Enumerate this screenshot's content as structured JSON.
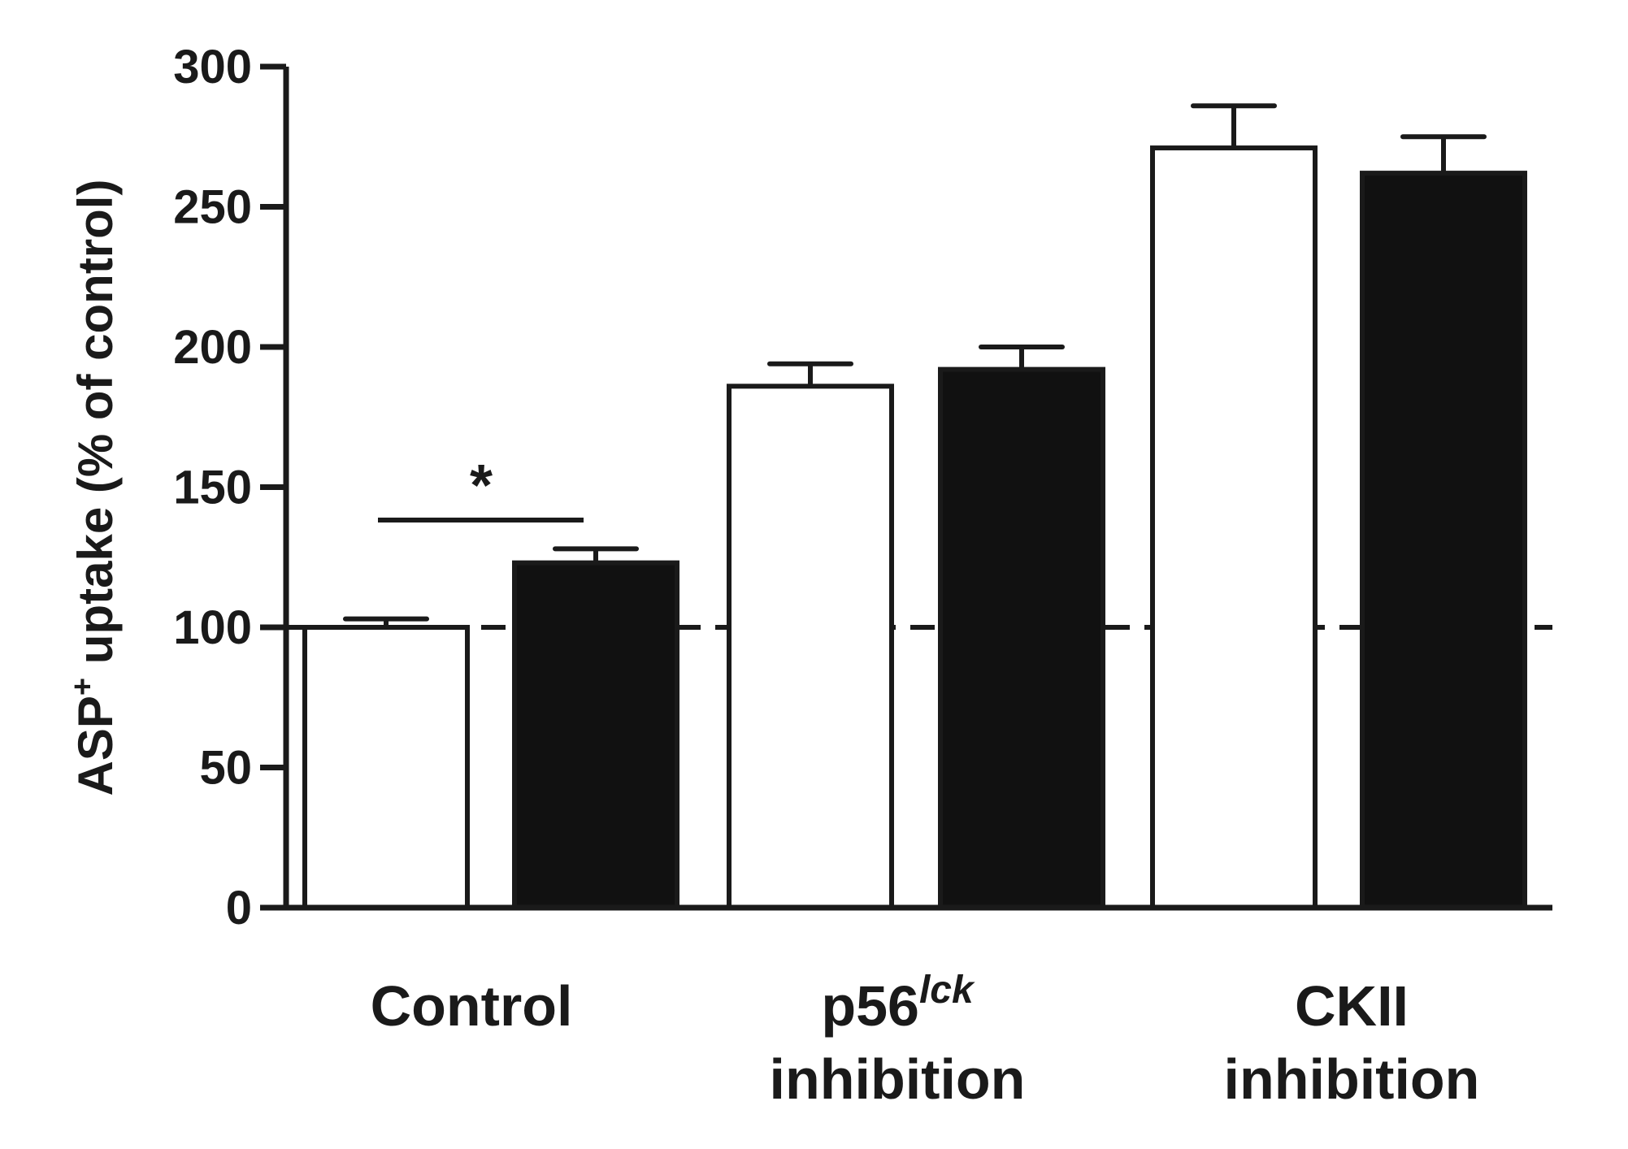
{
  "chart_data": {
    "type": "bar",
    "ylabel": "ASP+ uptake (% of control)",
    "ylabel_parts": {
      "main": "ASP",
      "sup": "+",
      "rest": " uptake (% of control)"
    },
    "ylim": [
      0,
      300
    ],
    "yticks": [
      0,
      50,
      100,
      150,
      200,
      250,
      300
    ],
    "ytick_labels": [
      "0",
      "50",
      "100",
      "150",
      "200",
      "250",
      "300"
    ],
    "categories": [
      "Control",
      "p56lck inhibition",
      "CKII inhibition"
    ],
    "category_labels": [
      {
        "line1": "Control",
        "line2": ""
      },
      {
        "line1": "p56",
        "sup": "lck",
        "line2": "inhibition"
      },
      {
        "line1": "CKII",
        "line2": "inhibition"
      }
    ],
    "series": [
      {
        "name": "open",
        "fill": "#ffffff",
        "values": [
          100,
          186,
          271
        ],
        "errors": [
          3,
          8,
          15
        ]
      },
      {
        "name": "filled",
        "fill": "#111111",
        "values": [
          123,
          192,
          262
        ],
        "errors": [
          5,
          8,
          13
        ]
      }
    ],
    "reference_line": {
      "y": 100,
      "style": "dashed"
    },
    "significance": [
      {
        "category": "Control",
        "label": "*"
      }
    ]
  },
  "colors": {
    "axis": "#1a1a1a",
    "text": "#1a1a1a"
  }
}
